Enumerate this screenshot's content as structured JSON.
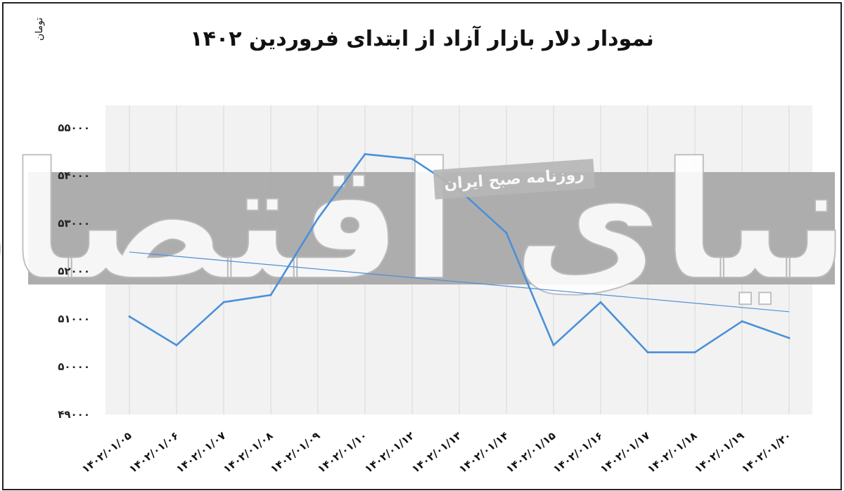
{
  "chart_data": {
    "type": "line",
    "title": "نمودار دلار بازار آزاد از ابتدای فروردین ۱۴۰۲",
    "ylabel": "تومان",
    "xlabel": "",
    "ylim": [
      49000,
      55500
    ],
    "yticks": [
      "۴۹۰۰۰",
      "۵۰۰۰۰",
      "۵۱۰۰۰",
      "۵۲۰۰۰",
      "۵۳۰۰۰",
      "۵۴۰۰۰",
      "۵۵۰۰۰"
    ],
    "ytick_values": [
      49000,
      50000,
      51000,
      52000,
      53000,
      54000,
      55000
    ],
    "categories": [
      "۱۴۰۲/۰۱/۰۵",
      "۱۴۰۲/۰۱/۰۶",
      "۱۴۰۲/۰۱/۰۷",
      "۱۴۰۲/۰۱/۰۸",
      "۱۴۰۲/۰۱/۰۹",
      "۱۴۰۲/۰۱/۱۰",
      "۱۴۰۲/۰۱/۱۲",
      "۱۴۰۲/۰۱/۱۳",
      "۱۴۰۲/۰۱/۱۴",
      "۱۴۰۲/۰۱/۱۵",
      "۱۴۰۲/۰۱/۱۶",
      "۱۴۰۲/۰۱/۱۷",
      "۱۴۰۲/۰۱/۱۸",
      "۱۴۰۲/۰۱/۱۹",
      "۱۴۰۲/۰۱/۲۰"
    ],
    "series": [
      {
        "values": [
          51050,
          50450,
          51350,
          51500,
          53100,
          54450,
          54350,
          53700,
          52800,
          50450,
          51350,
          50300,
          50300,
          50950,
          50600
        ],
        "color": "#4a90d9"
      }
    ],
    "trendline": {
      "start": 52400,
      "end": 51150,
      "color": "#4a90d9"
    },
    "grid": true,
    "legend": "none",
    "colors": {
      "line": "#4a90d9",
      "band": "#a9a9a9",
      "plot_bg": "#f2f2f2",
      "grid": "#d8d8d8"
    }
  },
  "watermark": {
    "logo_text": "دنیای اقتصاد",
    "caption": "روزنامه صبح ایران"
  }
}
